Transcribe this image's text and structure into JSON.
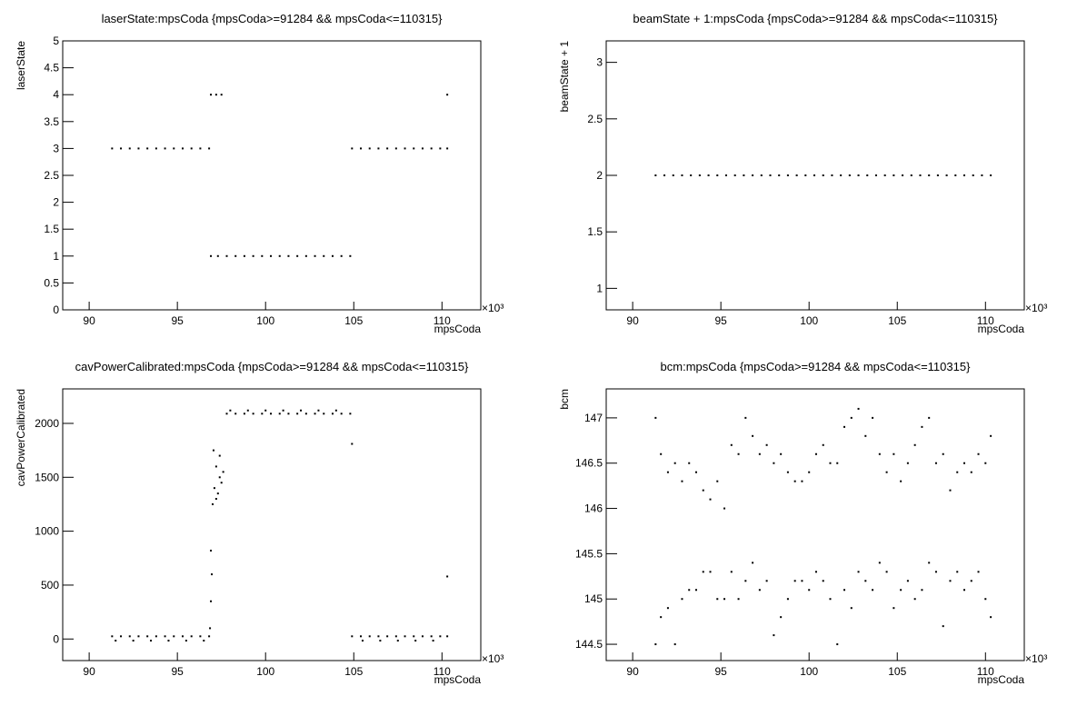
{
  "chart_data": [
    {
      "type": "scatter",
      "title": "laserState:mpsCoda {mpsCoda>=91284 && mpsCoda<=110315}",
      "x_label": "mpsCoda",
      "y_label": "laserState",
      "x_multiplier": "×10³",
      "xlim": [
        88.5,
        112.2
      ],
      "xticks": [
        90,
        95,
        100,
        105,
        110
      ],
      "ylim": [
        0,
        5
      ],
      "yticks": [
        0,
        0.5,
        1,
        1.5,
        2,
        2.5,
        3,
        3.5,
        4,
        4.5,
        5
      ],
      "color": "#000000",
      "x": [
        91.3,
        91.8,
        92.3,
        92.8,
        93.3,
        93.8,
        94.3,
        94.8,
        95.3,
        95.8,
        96.3,
        96.8,
        96.9,
        97.2,
        97.5,
        96.9,
        97.3,
        97.8,
        98.3,
        98.8,
        99.3,
        99.8,
        100.3,
        100.8,
        101.3,
        101.8,
        102.3,
        102.8,
        103.3,
        103.8,
        104.3,
        104.8,
        104.9,
        105.4,
        105.9,
        106.4,
        106.9,
        107.4,
        107.9,
        108.4,
        108.9,
        109.4,
        109.9,
        110.3,
        110.3
      ],
      "values": [
        3,
        3,
        3,
        3,
        3,
        3,
        3,
        3,
        3,
        3,
        3,
        3,
        4,
        4,
        4,
        1,
        1,
        1,
        1,
        1,
        1,
        1,
        1,
        1,
        1,
        1,
        1,
        1,
        1,
        1,
        1,
        1,
        3,
        3,
        3,
        3,
        3,
        3,
        3,
        3,
        3,
        3,
        3,
        3,
        4
      ]
    },
    {
      "type": "scatter",
      "title": "beamState + 1:mpsCoda {mpsCoda>=91284 && mpsCoda<=110315}",
      "x_label": "mpsCoda",
      "y_label": "beamState + 1",
      "x_multiplier": "×10³",
      "xlim": [
        88.5,
        112.2
      ],
      "xticks": [
        90,
        95,
        100,
        105,
        110
      ],
      "ylim": [
        0.81,
        3.19
      ],
      "yticks": [
        1,
        1.5,
        2,
        2.5,
        3
      ],
      "color": "#000000",
      "x": [
        91.3,
        91.8,
        92.3,
        92.8,
        93.3,
        93.8,
        94.3,
        94.8,
        95.3,
        95.8,
        96.3,
        96.8,
        97.3,
        97.8,
        98.3,
        98.8,
        99.3,
        99.8,
        100.3,
        100.8,
        101.3,
        101.8,
        102.3,
        102.8,
        103.3,
        103.8,
        104.3,
        104.8,
        105.3,
        105.8,
        106.3,
        106.8,
        107.3,
        107.8,
        108.3,
        108.8,
        109.3,
        109.8,
        110.3
      ],
      "values": [
        2,
        2,
        2,
        2,
        2,
        2,
        2,
        2,
        2,
        2,
        2,
        2,
        2,
        2,
        2,
        2,
        2,
        2,
        2,
        2,
        2,
        2,
        2,
        2,
        2,
        2,
        2,
        2,
        2,
        2,
        2,
        2,
        2,
        2,
        2,
        2,
        2,
        2,
        2
      ]
    },
    {
      "type": "scatter",
      "title": "cavPowerCalibrated:mpsCoda {mpsCoda>=91284 && mpsCoda<=110315}",
      "x_label": "mpsCoda",
      "y_label": "cavPowerCalibrated",
      "x_multiplier": "×10³",
      "xlim": [
        88.5,
        112.2
      ],
      "xticks": [
        90,
        95,
        100,
        105,
        110
      ],
      "ylim": [
        -200,
        2320
      ],
      "yticks": [
        0,
        500,
        1000,
        1500,
        2000
      ],
      "color": "#000000",
      "x": [
        91.3,
        91.8,
        92.3,
        92.8,
        93.3,
        93.8,
        94.3,
        94.8,
        95.3,
        95.8,
        96.3,
        96.8,
        91.5,
        92.5,
        93.5,
        94.5,
        95.5,
        96.5,
        96.85,
        96.9,
        96.9,
        96.95,
        97.0,
        97.05,
        97.1,
        97.2,
        97.3,
        97.4,
        97.5,
        97.6,
        97.2,
        97.4,
        97.8,
        98.3,
        98.8,
        99.3,
        99.8,
        100.3,
        100.8,
        101.3,
        101.8,
        102.3,
        102.8,
        103.3,
        103.8,
        104.3,
        104.8,
        98.0,
        99.0,
        100.0,
        101.0,
        102.0,
        103.0,
        104.0,
        104.9,
        104.9,
        105.4,
        105.9,
        106.4,
        106.9,
        107.4,
        107.9,
        108.4,
        108.9,
        109.4,
        109.9,
        110.3,
        105.5,
        106.5,
        107.5,
        108.5,
        109.5,
        110.3
      ],
      "values": [
        25,
        25,
        25,
        25,
        25,
        25,
        25,
        25,
        25,
        25,
        25,
        25,
        -15,
        -15,
        -15,
        -15,
        -15,
        -15,
        100,
        350,
        820,
        600,
        1250,
        1750,
        1400,
        1600,
        1350,
        1500,
        1450,
        1550,
        1300,
        1700,
        2090,
        2090,
        2090,
        2090,
        2090,
        2090,
        2090,
        2090,
        2090,
        2090,
        2090,
        2090,
        2090,
        2090,
        2090,
        2120,
        2120,
        2120,
        2120,
        2120,
        2120,
        2120,
        1810,
        25,
        25,
        25,
        25,
        25,
        25,
        25,
        25,
        25,
        25,
        25,
        25,
        -15,
        -15,
        -15,
        -15,
        -15,
        580
      ]
    },
    {
      "type": "scatter",
      "title": "bcm:mpsCoda {mpsCoda>=91284 && mpsCoda<=110315}",
      "x_label": "mpsCoda",
      "y_label": "bcm",
      "x_multiplier": "×10³",
      "xlim": [
        88.5,
        112.2
      ],
      "xticks": [
        90,
        95,
        100,
        105,
        110
      ],
      "ylim": [
        144.32,
        147.32
      ],
      "yticks": [
        144.5,
        145,
        145.5,
        146,
        146.5,
        147
      ],
      "color": "#000000",
      "x": [
        91.3,
        91.3,
        91.6,
        91.6,
        92.0,
        92.0,
        92.4,
        92.4,
        92.8,
        92.8,
        93.2,
        93.2,
        93.6,
        93.6,
        94.0,
        94.0,
        94.4,
        94.4,
        94.8,
        94.8,
        95.2,
        95.2,
        95.6,
        95.6,
        96.0,
        96.0,
        96.4,
        96.4,
        96.8,
        96.8,
        97.2,
        97.2,
        97.6,
        97.6,
        98.0,
        98.0,
        98.4,
        98.4,
        98.8,
        98.8,
        99.2,
        99.2,
        99.6,
        99.6,
        100.0,
        100.0,
        100.4,
        100.4,
        100.8,
        100.8,
        101.2,
        101.2,
        101.6,
        101.6,
        102.0,
        102.0,
        102.4,
        102.4,
        102.8,
        102.8,
        103.2,
        103.2,
        103.6,
        103.6,
        104.0,
        104.0,
        104.4,
        104.4,
        104.8,
        104.8,
        105.2,
        105.2,
        105.6,
        105.6,
        106.0,
        106.0,
        106.4,
        106.4,
        106.8,
        106.8,
        107.2,
        107.2,
        107.6,
        107.6,
        108.0,
        108.0,
        108.4,
        108.4,
        108.8,
        108.8,
        109.2,
        109.2,
        109.6,
        109.6,
        110.0,
        110.0,
        110.3,
        110.3
      ],
      "values": [
        147.0,
        144.5,
        146.6,
        144.8,
        146.4,
        144.9,
        146.5,
        144.5,
        146.3,
        145.0,
        146.5,
        145.1,
        146.4,
        145.1,
        146.2,
        145.3,
        146.1,
        145.3,
        146.3,
        145.0,
        146.0,
        145.0,
        146.7,
        145.3,
        146.6,
        145.0,
        147.0,
        145.2,
        146.8,
        145.4,
        146.6,
        145.1,
        146.7,
        145.2,
        146.5,
        144.6,
        146.6,
        144.8,
        146.4,
        145.0,
        146.3,
        145.2,
        146.3,
        145.2,
        146.4,
        145.1,
        146.6,
        145.3,
        146.7,
        145.2,
        146.5,
        145.0,
        146.5,
        144.5,
        146.9,
        145.1,
        147.0,
        144.9,
        147.1,
        145.3,
        146.8,
        145.2,
        147.0,
        145.1,
        146.6,
        145.4,
        146.4,
        145.3,
        146.6,
        144.9,
        146.3,
        145.1,
        146.5,
        145.2,
        146.7,
        145.0,
        146.9,
        145.1,
        147.0,
        145.4,
        146.5,
        145.3,
        146.6,
        144.7,
        146.2,
        145.2,
        146.4,
        145.3,
        146.5,
        145.1,
        146.4,
        145.2,
        146.6,
        145.3,
        146.5,
        145.0,
        146.8,
        144.8
      ]
    }
  ]
}
